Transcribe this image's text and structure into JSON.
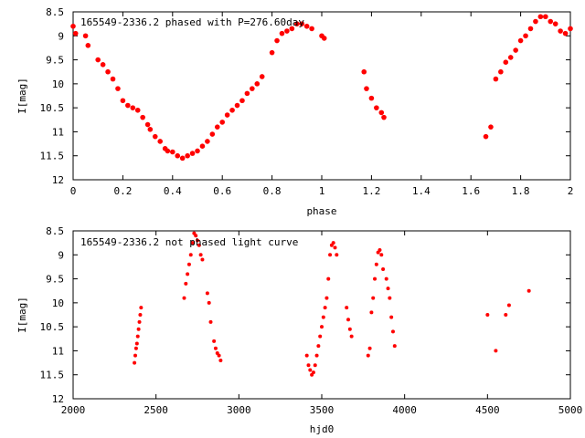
{
  "colors": {
    "points": "#ff0000",
    "axes": "#000000",
    "background": "#ffffff"
  },
  "chart_data": [
    {
      "type": "scatter",
      "title": "165549-2336.2 phased with P=276.60day",
      "xlabel": "phase",
      "ylabel": "I[mag]",
      "xlim": [
        0,
        2
      ],
      "ylim": [
        12,
        8.5
      ],
      "y_inverted": true,
      "xticks": [
        "0",
        "0.2",
        "0.4",
        "0.6",
        "0.8",
        "1",
        "1.2",
        "1.4",
        "1.6",
        "1.8",
        "2"
      ],
      "yticks": [
        "8.5",
        "9",
        "9.5",
        "10",
        "10.5",
        "11",
        "11.5",
        "12"
      ],
      "grid": false,
      "series": [
        {
          "x": [
            0.0,
            0.01,
            0.05,
            0.06,
            0.1,
            0.12,
            0.14,
            0.16,
            0.18,
            0.2,
            0.22,
            0.24,
            0.26,
            0.28,
            0.3,
            0.31,
            0.33,
            0.35,
            0.37,
            0.38,
            0.4,
            0.42,
            0.44,
            0.46,
            0.48,
            0.5,
            0.52,
            0.54,
            0.56,
            0.58,
            0.6,
            0.62,
            0.64,
            0.66,
            0.68,
            0.7,
            0.72,
            0.74,
            0.76,
            0.8,
            0.82,
            0.84,
            0.86,
            0.88,
            0.9,
            0.92,
            0.94,
            0.96,
            1.0,
            1.01,
            1.17,
            1.18,
            1.2,
            1.22,
            1.24,
            1.25,
            1.66,
            1.68,
            1.7,
            1.72,
            1.74,
            1.76,
            1.78,
            1.8,
            1.82,
            1.84,
            1.86,
            1.88,
            1.9,
            1.92,
            1.94,
            1.96,
            1.98,
            2.0
          ],
          "y": [
            8.8,
            8.95,
            9.0,
            9.2,
            9.5,
            9.6,
            9.75,
            9.9,
            10.1,
            10.35,
            10.45,
            10.5,
            10.55,
            10.7,
            10.85,
            10.95,
            11.1,
            11.2,
            11.35,
            11.4,
            11.42,
            11.5,
            11.55,
            11.5,
            11.45,
            11.4,
            11.3,
            11.2,
            11.05,
            10.9,
            10.8,
            10.65,
            10.55,
            10.45,
            10.35,
            10.2,
            10.1,
            10.0,
            9.85,
            9.35,
            9.1,
            8.95,
            8.9,
            8.85,
            8.75,
            8.75,
            8.8,
            8.85,
            9.0,
            9.05,
            9.75,
            10.1,
            10.3,
            10.5,
            10.6,
            10.7,
            11.1,
            10.9,
            9.9,
            9.75,
            9.55,
            9.45,
            9.3,
            9.1,
            9.0,
            8.85,
            8.7,
            8.6,
            8.6,
            8.7,
            8.75,
            8.9,
            8.95,
            8.85
          ]
        }
      ]
    },
    {
      "type": "scatter",
      "title": "165549-2336.2 not phased light curve",
      "xlabel": "hjd0",
      "ylabel": "I[mag]",
      "xlim": [
        2000,
        5000
      ],
      "ylim": [
        12,
        8.5
      ],
      "y_inverted": true,
      "xticks": [
        "2000",
        "2500",
        "3000",
        "3500",
        "4000",
        "4500",
        "5000"
      ],
      "yticks": [
        "8.5",
        "9",
        "9.5",
        "10",
        "10.5",
        "11",
        "11.5",
        "12"
      ],
      "grid": false,
      "series": [
        {
          "x": [
            2370,
            2375,
            2380,
            2385,
            2390,
            2395,
            2400,
            2405,
            2410,
            2670,
            2680,
            2690,
            2700,
            2710,
            2720,
            2730,
            2740,
            2750,
            2760,
            2770,
            2780,
            2810,
            2820,
            2830,
            2850,
            2860,
            2870,
            2880,
            2890,
            3410,
            3420,
            3430,
            3440,
            3450,
            3460,
            3470,
            3480,
            3490,
            3500,
            3510,
            3520,
            3530,
            3540,
            3550,
            3560,
            3570,
            3580,
            3590,
            3650,
            3660,
            3670,
            3680,
            3780,
            3790,
            3800,
            3810,
            3820,
            3830,
            3840,
            3850,
            3860,
            3870,
            3890,
            3900,
            3910,
            3920,
            3930,
            3940,
            4500,
            4550,
            4610,
            4630,
            4750
          ],
          "y": [
            11.25,
            11.1,
            10.95,
            10.85,
            10.7,
            10.55,
            10.4,
            10.25,
            10.1,
            9.9,
            9.6,
            9.4,
            9.2,
            9.0,
            8.75,
            8.55,
            8.6,
            8.7,
            8.8,
            9.0,
            9.1,
            9.8,
            10.0,
            10.4,
            10.8,
            10.95,
            11.05,
            11.1,
            11.2,
            11.1,
            11.3,
            11.4,
            11.5,
            11.45,
            11.3,
            11.1,
            10.9,
            10.7,
            10.5,
            10.3,
            10.1,
            9.9,
            9.5,
            9.0,
            8.8,
            8.75,
            8.85,
            9.0,
            10.1,
            10.35,
            10.55,
            10.7,
            11.1,
            10.95,
            10.2,
            9.9,
            9.5,
            9.2,
            8.95,
            8.9,
            9.0,
            9.3,
            9.5,
            9.7,
            9.9,
            10.3,
            10.6,
            10.9,
            10.25,
            11.0,
            10.25,
            10.05,
            9.75
          ]
        }
      ]
    }
  ]
}
